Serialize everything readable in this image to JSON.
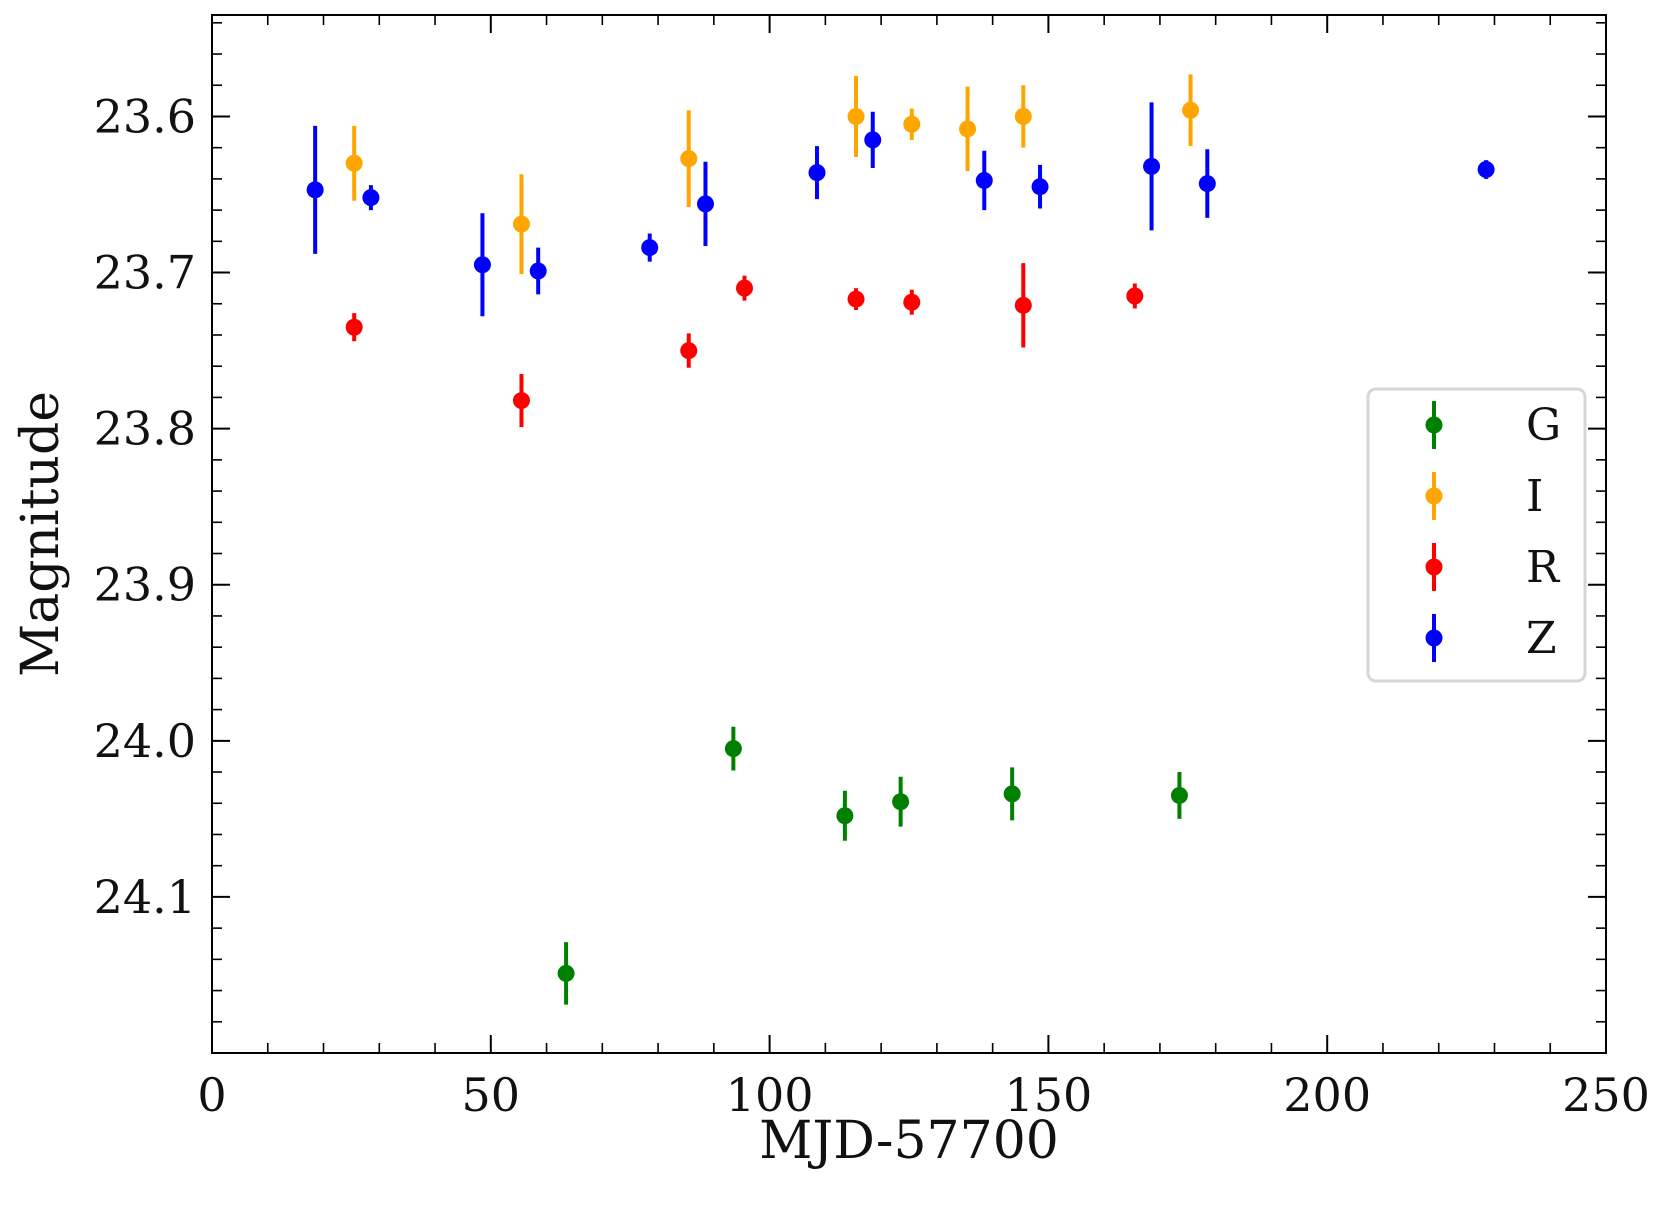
{
  "chart_data": {
    "type": "scatter",
    "title": "",
    "xlabel": "MJD-57700",
    "ylabel": "Magnitude",
    "xlim": [
      0,
      250
    ],
    "ylim": [
      24.2,
      23.535
    ],
    "y_inverted": true,
    "grid": false,
    "legend_position": "center-right",
    "x_ticks": [
      0,
      50,
      100,
      150,
      200,
      250
    ],
    "x_tick_labels": [
      "0",
      "50",
      "100",
      "150",
      "200",
      "250"
    ],
    "y_ticks": [
      23.6,
      23.7,
      23.8,
      23.9,
      24.0,
      24.1
    ],
    "y_tick_labels": [
      "23.6",
      "23.7",
      "23.8",
      "23.9",
      "24.0",
      "24.1"
    ],
    "series": [
      {
        "name": "G",
        "color": "#008000",
        "x": [
          63.5,
          93.5,
          113.5,
          123.5,
          143.5,
          173.5
        ],
        "y": [
          24.149,
          24.005,
          24.048,
          24.039,
          24.034,
          24.035
        ],
        "yerr": [
          0.02,
          0.014,
          0.016,
          0.016,
          0.017,
          0.015
        ]
      },
      {
        "name": "I",
        "color": "#FFA500",
        "x": [
          25.5,
          55.5,
          85.5,
          115.5,
          125.5,
          135.5,
          145.5,
          175.5
        ],
        "y": [
          23.63,
          23.669,
          23.627,
          23.6,
          23.605,
          23.608,
          23.6,
          23.596
        ],
        "yerr": [
          0.024,
          0.032,
          0.031,
          0.026,
          0.01,
          0.027,
          0.02,
          0.023
        ]
      },
      {
        "name": "R",
        "color": "#FF0000",
        "x": [
          25.5,
          55.5,
          85.5,
          95.5,
          115.5,
          125.5,
          145.5,
          165.5
        ],
        "y": [
          23.735,
          23.782,
          23.75,
          23.71,
          23.717,
          23.719,
          23.721,
          23.715
        ],
        "yerr": [
          0.009,
          0.017,
          0.011,
          0.008,
          0.007,
          0.008,
          0.027,
          0.008
        ]
      },
      {
        "name": "Z",
        "color": "#0000FF",
        "x": [
          18.5,
          28.5,
          48.5,
          58.5,
          78.5,
          88.5,
          108.5,
          118.5,
          138.5,
          148.5,
          168.5,
          178.5,
          228.5
        ],
        "y": [
          23.647,
          23.652,
          23.695,
          23.699,
          23.684,
          23.656,
          23.636,
          23.615,
          23.641,
          23.645,
          23.632,
          23.643,
          23.634
        ],
        "yerr": [
          0.041,
          0.008,
          0.033,
          0.015,
          0.009,
          0.027,
          0.017,
          0.018,
          0.019,
          0.014,
          0.041,
          0.022,
          0.006
        ]
      }
    ]
  }
}
